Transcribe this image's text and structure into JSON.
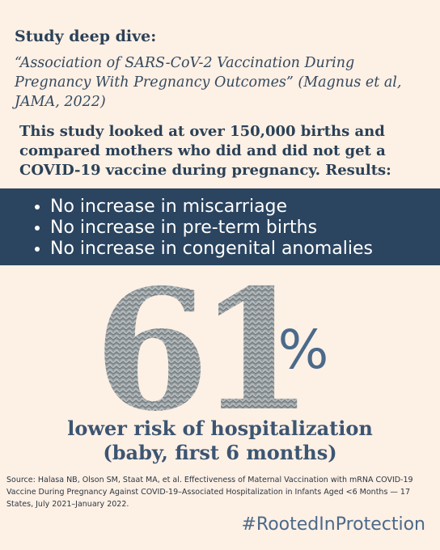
{
  "header": {
    "label": "Study deep dive:",
    "citation": "“Association of SARS-CoV-2 Vaccination During Pregnancy With Pregnancy Outcomes” (Magnus et al, JAMA, 2022)"
  },
  "summary": "This study looked at over 150,000 births and compared mothers who did and did not get a COVID-19 vaccine during pregnancy. Results:",
  "results": [
    "No increase in miscarriage",
    "No increase in pre-term births",
    "No increase in congenital anomalies"
  ],
  "stat": {
    "number": "61",
    "unit": "%",
    "caption": [
      "lower risk of hospitalization",
      "(baby, first 6 months)"
    ]
  },
  "source": "Source: Halasa NB, Olson SM, Staat MA, et al. Effectiveness of Maternal Vaccination with mRNA COVID-19 Vaccine During Pregnancy Against COVID-19–Associated Hospitalization in Infants Aged <6 Months — 17 States, July 2021–January 2022.",
  "hashtag": "#RootedInProtection"
}
